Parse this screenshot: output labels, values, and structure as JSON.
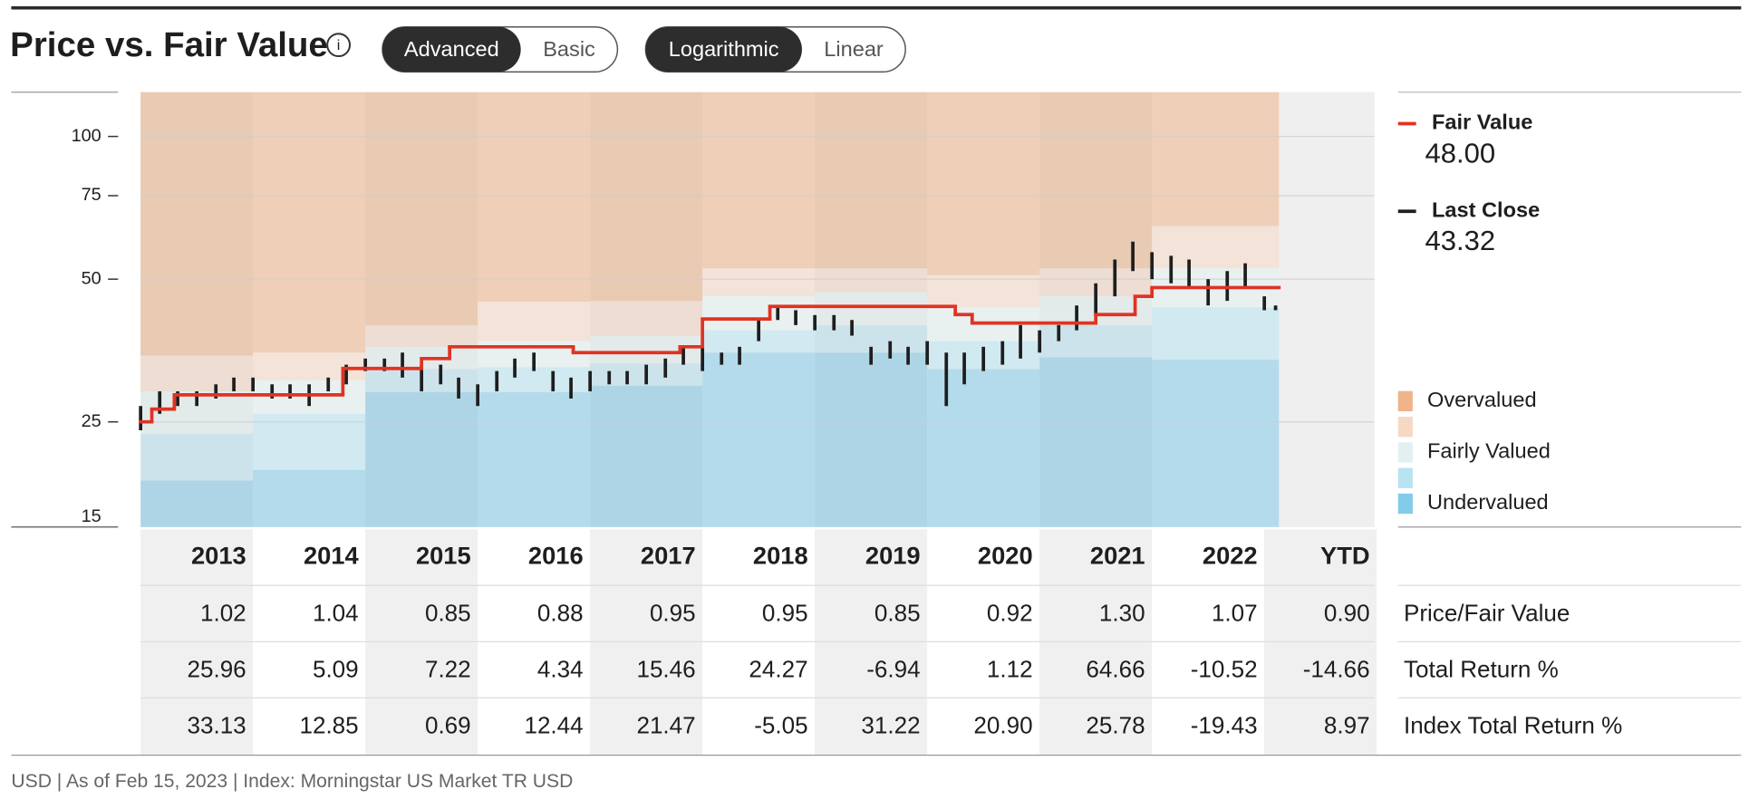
{
  "header": {
    "title": "Price vs. Fair Value",
    "toggles": [
      {
        "options": [
          "Advanced",
          "Basic"
        ],
        "active": 0
      },
      {
        "options": [
          "Logarithmic",
          "Linear"
        ],
        "active": 0
      }
    ]
  },
  "chart_data": {
    "type": "price_fair_value",
    "log_scale": true,
    "grid": true,
    "xlim": [
      2013,
      2024
    ],
    "ylim": [
      15,
      124
    ],
    "yticks": [
      15,
      25,
      50,
      75,
      100
    ],
    "fair_value": {
      "name": "Fair Value",
      "color": "#e03323",
      "legend_value": "48.00",
      "x": [
        2013,
        2013.1,
        2013.3,
        2014.8,
        2015.5,
        2015.75,
        2016.85,
        2017.8,
        2018.0,
        2018.6,
        2020.25,
        2020.4,
        2021.5,
        2021.85,
        2022.0
      ],
      "values": [
        25,
        26.6,
        28.5,
        32.4,
        34,
        36,
        35,
        36,
        41.2,
        43.8,
        42.1,
        40.4,
        42.1,
        46,
        48
      ]
    },
    "price": {
      "name": "Last Close",
      "color": "#1e1e1e",
      "legend_value": "43.32",
      "x": [
        2013,
        2013.17,
        2013.33,
        2013.5,
        2013.67,
        2013.83,
        2014,
        2014.17,
        2014.33,
        2014.5,
        2014.67,
        2014.83,
        2015,
        2015.17,
        2015.33,
        2015.5,
        2015.67,
        2015.83,
        2016,
        2016.17,
        2016.33,
        2016.5,
        2016.67,
        2016.83,
        2017,
        2017.17,
        2017.33,
        2017.5,
        2017.67,
        2017.83,
        2018,
        2018.17,
        2018.33,
        2018.5,
        2018.67,
        2018.83,
        2019,
        2019.17,
        2019.33,
        2019.5,
        2019.67,
        2019.83,
        2020,
        2020.17,
        2020.33,
        2020.5,
        2020.67,
        2020.83,
        2021,
        2021.17,
        2021.33,
        2021.5,
        2021.67,
        2021.83,
        2022,
        2022.17,
        2022.33,
        2022.5,
        2022.67,
        2022.83,
        2023,
        2023.1
      ],
      "high": [
        27,
        29,
        29,
        29,
        30,
        31,
        31,
        30,
        30,
        30,
        31,
        33,
        34,
        34,
        35,
        33,
        33,
        31,
        30,
        32,
        34,
        35,
        32,
        31,
        32,
        32,
        32,
        33,
        34,
        36,
        36,
        35,
        36,
        41,
        44,
        43,
        42,
        42,
        41,
        36,
        37,
        36,
        37,
        35,
        35,
        36,
        37,
        40,
        39,
        40,
        44,
        49,
        55,
        60,
        57,
        56,
        55,
        50,
        52,
        54,
        46,
        44
      ],
      "low": [
        24,
        26,
        27,
        27,
        28,
        29,
        29,
        28,
        28,
        27,
        29,
        30,
        32,
        32,
        31,
        29,
        30,
        28,
        27,
        29,
        31,
        32,
        29,
        28,
        29,
        30,
        30,
        30,
        31,
        33,
        32,
        33,
        33,
        37,
        41,
        40,
        39,
        39,
        38,
        33,
        34,
        33,
        33,
        27,
        30,
        32,
        33,
        34,
        35,
        37,
        39,
        42,
        46,
        52,
        50,
        49,
        48,
        44,
        45,
        48,
        43,
        43
      ]
    },
    "bands": {
      "x": [
        2013,
        2014,
        2015,
        2016,
        2017,
        2018,
        2019,
        2020,
        2021,
        2022,
        2023.13
      ],
      "edges": [
        [
          18.8,
          19.8,
          28.9,
          28.9,
          29.8,
          35,
          35,
          32.3,
          34.2,
          33.8
        ],
        [
          23.6,
          26,
          32.3,
          32.6,
          33.2,
          39,
          40,
          37,
          40,
          43.6
        ],
        [
          29,
          30.6,
          36,
          37,
          38,
          46,
          47,
          43.6,
          46,
          52.7
        ],
        [
          34.5,
          35,
          40,
          44.8,
          45,
          52.7,
          52.7,
          51,
          52.7,
          64.7
        ]
      ]
    },
    "legend": [
      {
        "name": "Overvalued",
        "color": "#efb48a"
      },
      {
        "name": null,
        "color": "#f6d9c4"
      },
      {
        "name": "Fairly Valued",
        "color": "#e3f0f0"
      },
      {
        "name": null,
        "color": "#b8e3f2"
      },
      {
        "name": "Undervalued",
        "color": "#82cbe9"
      }
    ]
  },
  "table": {
    "columns": [
      "2013",
      "2014",
      "2015",
      "2016",
      "2017",
      "2018",
      "2019",
      "2020",
      "2021",
      "2022",
      "YTD"
    ],
    "rows": [
      {
        "label": "Price/Fair Value",
        "values": [
          "1.02",
          "1.04",
          "0.85",
          "0.88",
          "0.95",
          "0.95",
          "0.85",
          "0.92",
          "1.30",
          "1.07",
          "0.90"
        ]
      },
      {
        "label": "Total Return %",
        "values": [
          "25.96",
          "5.09",
          "7.22",
          "4.34",
          "15.46",
          "24.27",
          "-6.94",
          "1.12",
          "64.66",
          "-10.52",
          "-14.66"
        ]
      },
      {
        "label": "Index Total Return %",
        "values": [
          "33.13",
          "12.85",
          "0.69",
          "12.44",
          "21.47",
          "-5.05",
          "31.22",
          "20.90",
          "25.78",
          "-19.43",
          "8.97"
        ]
      }
    ]
  },
  "footer": "USD | As of Feb 15, 2023 | Index: Morningstar US Market TR USD"
}
